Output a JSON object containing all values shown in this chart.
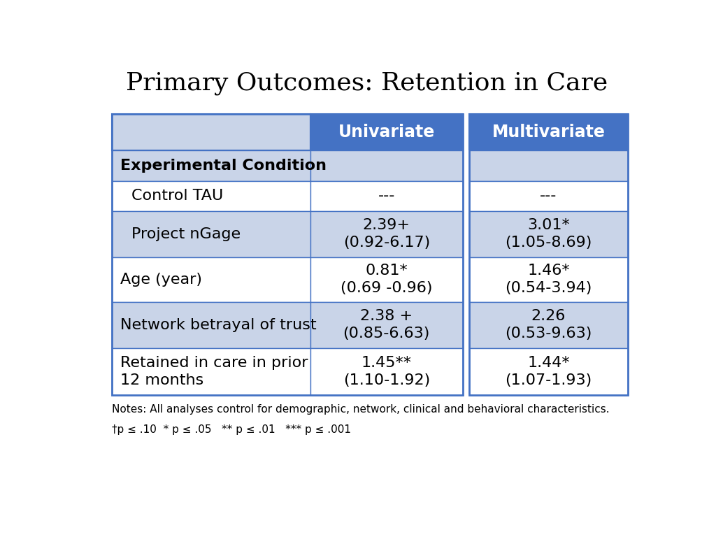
{
  "title": "Primary Outcomes: Retention in Care",
  "title_fontsize": 26,
  "col_headers": [
    "",
    "Univariate",
    "Multivariate"
  ],
  "header_bg": "#4472C4",
  "header_text_color": "#FFFFFF",
  "header_fontsize": 17,
  "rows": [
    {
      "label": "Experimental Condition",
      "label_bold": true,
      "label_indent": false,
      "univariate": "",
      "multivariate": "",
      "bg": "#C9D4E8"
    },
    {
      "label": "Control TAU",
      "label_bold": false,
      "label_indent": true,
      "univariate": "---",
      "multivariate": "---",
      "bg": "#FFFFFF"
    },
    {
      "label": "Project nGage",
      "label_bold": false,
      "label_indent": true,
      "univariate": "2.39+\n(0.92-6.17)",
      "multivariate": "3.01*\n(1.05-8.69)",
      "bg": "#C9D4E8"
    },
    {
      "label": "Age (year)",
      "label_bold": false,
      "label_indent": false,
      "univariate": "0.81*\n(0.69 -0.96)",
      "multivariate": "1.46*\n(0.54-3.94)",
      "bg": "#FFFFFF"
    },
    {
      "label": "Network betrayal of trust",
      "label_bold": false,
      "label_indent": false,
      "univariate": "2.38 +\n(0.85-6.63)",
      "multivariate": "2.26\n(0.53-9.63)",
      "bg": "#C9D4E8"
    },
    {
      "label": "Retained in care in prior\n12 months",
      "label_bold": false,
      "label_indent": false,
      "univariate": "1.45**\n(1.10-1.92)",
      "multivariate": "1.44*\n(1.07-1.93)",
      "bg": "#FFFFFF"
    }
  ],
  "note_line1": "Notes: All analyses control for demographic, network, clinical and behavioral characteristics.",
  "note_line2": "†p ≤ .10  * p ≤ .05   ** p ≤ .01   *** p ≤ .001",
  "note_fontsize": 11,
  "bg_light": "#C9D4E8",
  "bg_white": "#FFFFFF",
  "border_color": "#4472C4",
  "gap_color": "#FFFFFF",
  "data_fontsize": 16,
  "label_fontsize": 16
}
